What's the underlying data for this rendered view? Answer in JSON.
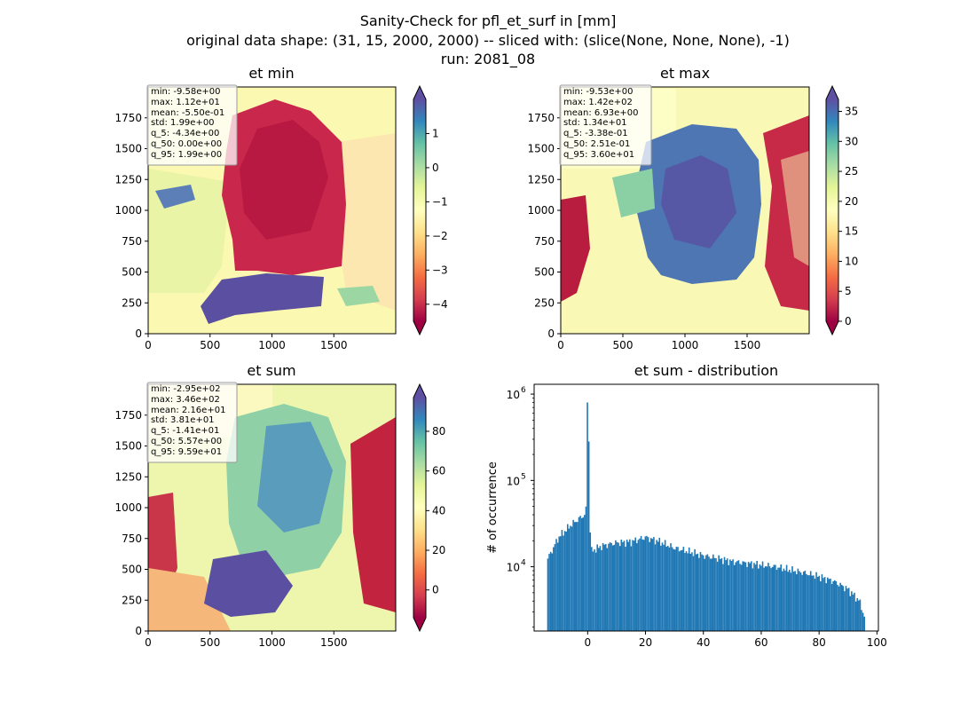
{
  "figure": {
    "title_lines": [
      "Sanity-Check for pfl_et_surf in [mm]",
      "original data shape: (31, 15, 2000, 2000) -- sliced with: (slice(None, None, None), -1)",
      "run: 2081_08"
    ]
  },
  "chart_data": [
    {
      "type": "heatmap",
      "title": "et min",
      "x_ticks": [
        0,
        500,
        1000,
        1500
      ],
      "y_ticks": [
        0,
        250,
        500,
        750,
        1000,
        1250,
        1500,
        1750
      ],
      "xlim": [
        0,
        2000
      ],
      "ylim": [
        0,
        2000
      ],
      "colorbar": {
        "ticks": [
          1,
          0,
          -1,
          -2,
          -3,
          -4
        ],
        "tick_labels": [
          "1",
          "0",
          "−1",
          "−2",
          "−3",
          "−4"
        ],
        "range": [
          -4.5,
          2.0
        ],
        "extend": "both"
      },
      "stats": [
        "min: -9.58e+00",
        "max: 1.12e+01",
        "mean: -5.50e-01",
        "std: 1.99e+00",
        "q_5: -4.34e+00",
        "q_50: 0.00e+00",
        "q_95: 1.99e+00"
      ]
    },
    {
      "type": "heatmap",
      "title": "et max",
      "x_ticks": [
        0,
        500,
        1000,
        1500
      ],
      "y_ticks": [
        0,
        250,
        500,
        750,
        1000,
        1250,
        1500,
        1750
      ],
      "xlim": [
        0,
        2000
      ],
      "ylim": [
        0,
        2000
      ],
      "colorbar": {
        "ticks": [
          35,
          30,
          25,
          20,
          15,
          10,
          5,
          0
        ],
        "tick_labels": [
          "35",
          "30",
          "25",
          "20",
          "15",
          "10",
          "5",
          "0"
        ],
        "range": [
          0,
          37
        ],
        "extend": "both"
      },
      "stats": [
        "min: -9.53e+00",
        "max: 1.42e+02",
        "mean: 6.93e+00",
        "std: 1.34e+01",
        "q_5: -3.38e-01",
        "q_50: 2.51e-01",
        "q_95: 3.60e+01"
      ]
    },
    {
      "type": "heatmap",
      "title": "et sum",
      "x_ticks": [
        0,
        500,
        1000,
        1500
      ],
      "y_ticks": [
        0,
        250,
        500,
        750,
        1000,
        1250,
        1500,
        1750
      ],
      "xlim": [
        0,
        2000
      ],
      "ylim": [
        0,
        2000
      ],
      "colorbar": {
        "ticks": [
          80,
          60,
          40,
          20,
          0
        ],
        "tick_labels": [
          "80",
          "60",
          "40",
          "20",
          "0"
        ],
        "range": [
          -14,
          97
        ],
        "extend": "both"
      },
      "stats": [
        "min: -2.95e+02",
        "max: 3.46e+02",
        "mean: 2.16e+01",
        "std: 3.81e+01",
        "q_5: -1.41e+01",
        "q_50: 5.57e+00",
        "q_95: 9.59e+01"
      ]
    },
    {
      "type": "bar",
      "title": "et sum - distribution",
      "ylabel": "# of occurrence",
      "yscale": "log",
      "xlim": [
        -18.5,
        100.5
      ],
      "ylim": [
        1800,
        1300000
      ],
      "x_ticks": [
        0,
        20,
        40,
        60,
        80,
        100
      ],
      "y_ticks": [
        10000,
        100000,
        1000000
      ],
      "y_tick_labels": [
        {
          "base": "10",
          "exp": "4"
        },
        {
          "base": "10",
          "exp": "5"
        },
        {
          "base": "10",
          "exp": "6"
        }
      ],
      "hist": {
        "x": [
          -14,
          -10,
          -6,
          -3,
          -1,
          -0.2,
          0.2,
          1,
          5,
          10,
          15,
          20,
          25,
          30,
          35,
          40,
          45,
          50,
          55,
          60,
          65,
          70,
          75,
          80,
          85,
          90,
          94,
          95.9
        ],
        "y": [
          12000,
          22000,
          30000,
          36000,
          40000,
          60000,
          800000,
          15000,
          17500,
          19000,
          19500,
          22000,
          19500,
          16500,
          15000,
          13500,
          12500,
          11500,
          11000,
          10500,
          10000,
          9200,
          8500,
          7700,
          6800,
          5500,
          4000,
          2500
        ]
      }
    }
  ]
}
